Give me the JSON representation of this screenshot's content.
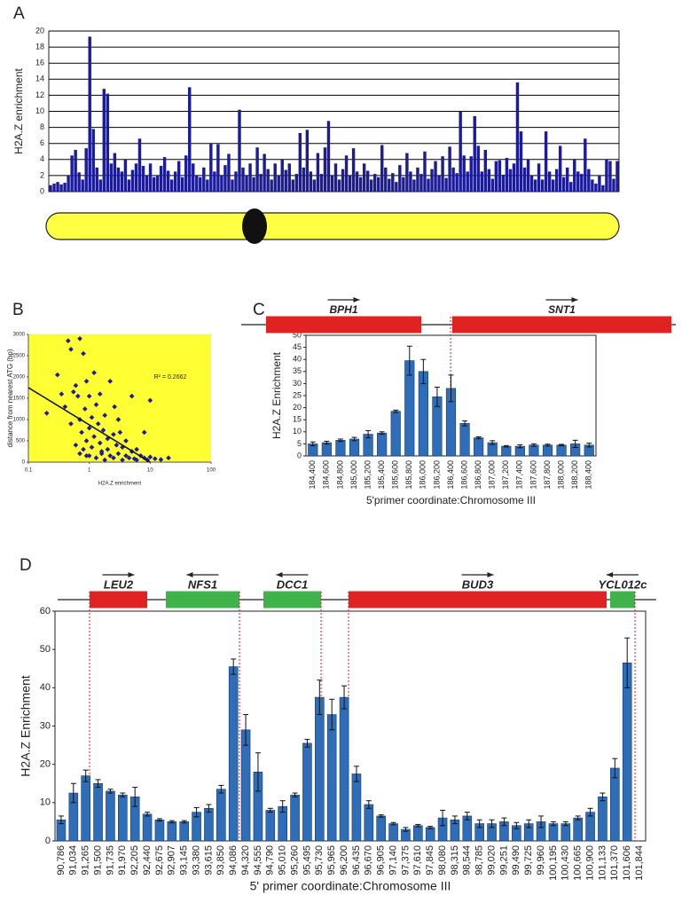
{
  "chart_data": [
    {
      "panel": "A",
      "type": "bar",
      "y_label": "H2A.Z enrichment",
      "color": "#1c1c96",
      "ylim": [
        0,
        20
      ],
      "yticks": [
        0,
        2,
        4,
        6,
        8,
        10,
        12,
        14,
        16,
        18,
        20
      ],
      "grid": true,
      "values": [
        0.8,
        1,
        1.2,
        0.9,
        1.1,
        2,
        4.5,
        5.2,
        2.4,
        1.5,
        5.4,
        19.3,
        7.8,
        3,
        1.5,
        12.8,
        12.2,
        3.5,
        4.8,
        3,
        2.5,
        4,
        1.5,
        2.7,
        3.5,
        6.6,
        3.2,
        2,
        3.5,
        1.8,
        2,
        3.2,
        4.3,
        2.6,
        1.5,
        2.5,
        3.8,
        1.8,
        4.5,
        13,
        3.5,
        2,
        1.8,
        3,
        1.5,
        6,
        2.5,
        5.9,
        2,
        3.3,
        4.7,
        1.5,
        2.5,
        10.2,
        3,
        2,
        3.5,
        1.8,
        5.5,
        2.2,
        4.7,
        2.8,
        1.5,
        3.5,
        2,
        4,
        2.7,
        3.5,
        1.5,
        2.2,
        7.3,
        3,
        7.7,
        2.5,
        1.5,
        4.8,
        2.2,
        5.5,
        8.8,
        2,
        3.5,
        1.5,
        2.8,
        4.5,
        2,
        5.4,
        2.5,
        1.8,
        3.5,
        2.6,
        1.5,
        2.2,
        1.8,
        5.8,
        3,
        1.6,
        2.3,
        1.2,
        3.3,
        1.8,
        4.8,
        2.5,
        1.5,
        3,
        2.2,
        5,
        1.6,
        2.8,
        3.8,
        2,
        4.4,
        1.7,
        5.6,
        3,
        2.3,
        10,
        4.5,
        2.5,
        4.4,
        9.4,
        5.7,
        2.5,
        5.2,
        2.8,
        1.6,
        3.8,
        3.9,
        2.1,
        4.2,
        2.8,
        3.5,
        13.6,
        7.5,
        3,
        4,
        2,
        1.5,
        3.5,
        1.5,
        7.5,
        2.5,
        1.5,
        2.8,
        5.7,
        1.8,
        3,
        1.2,
        4,
        2.5,
        2.2,
        6.6,
        2.8,
        1.5,
        1,
        2,
        0.8,
        4,
        3.8,
        1.6,
        3.8
      ]
    },
    {
      "panel": "B",
      "type": "scatter",
      "y_label": "distance from nearest ATG (bp)",
      "x_label": "H2A.Z enrichment",
      "annotation": "R² = 0.2662",
      "color": "#1c1c96",
      "background": "#ffff33",
      "xscale": "log",
      "xlim": [
        0.1,
        100
      ],
      "xticks": [
        0.1,
        1,
        10,
        100
      ],
      "ylim": [
        0,
        3000
      ],
      "yticks": [
        0,
        500,
        1000,
        1500,
        2000,
        2500,
        3000
      ],
      "x": [
        0.2,
        0.3,
        0.35,
        0.4,
        0.45,
        0.5,
        0.5,
        0.55,
        0.6,
        0.6,
        0.65,
        0.7,
        0.7,
        0.75,
        0.8,
        0.8,
        0.85,
        0.9,
        0.9,
        1,
        1,
        1,
        1.1,
        1.1,
        1.2,
        1.2,
        1.3,
        1.3,
        1.4,
        1.5,
        1.5,
        1.6,
        1.7,
        1.8,
        1.8,
        2,
        2,
        2.2,
        2.2,
        2.5,
        2.5,
        2.8,
        3,
        3,
        3.2,
        3.5,
        3.5,
        4,
        4,
        4.5,
        5,
        5,
        5.5,
        6,
        6,
        7,
        8,
        8,
        9,
        10,
        10,
        12,
        15,
        20,
        0.9,
        1.6,
        2.6,
        0.7
      ],
      "values": [
        1150,
        2050,
        1600,
        1300,
        2850,
        2650,
        900,
        1650,
        1800,
        400,
        1550,
        2900,
        1000,
        700,
        2550,
        300,
        1250,
        1900,
        500,
        1550,
        800,
        150,
        1050,
        350,
        2100,
        600,
        1350,
        100,
        900,
        450,
        1600,
        250,
        750,
        1100,
        50,
        550,
        300,
        1900,
        150,
        650,
        100,
        400,
        1000,
        200,
        700,
        50,
        350,
        500,
        150,
        100,
        250,
        1550,
        80,
        300,
        50,
        150,
        100,
        700,
        50,
        1450,
        120,
        80,
        60,
        100,
        150,
        200,
        1300,
        200
      ],
      "trendline": {
        "x": [
          0.1,
          10
        ],
        "values": [
          1750,
          0
        ]
      }
    },
    {
      "panel": "C",
      "type": "bar",
      "y_label": "H2A.Z Enrichment",
      "x_label": "5'primer coordinate:Chromosome III",
      "color": "#2f6db8",
      "ylim": [
        0,
        50
      ],
      "yticks": [
        0,
        5,
        10,
        15,
        20,
        25,
        30,
        35,
        40,
        45,
        50
      ],
      "grid": false,
      "genes": [
        {
          "name": "BPH1",
          "color": "#e02222"
        },
        {
          "name": "SNT1",
          "color": "#e02222"
        }
      ],
      "categories": [
        "184,400",
        "184,600",
        "184,800",
        "185,000",
        "185,200",
        "185,400",
        "185,600",
        "185,800",
        "186,000",
        "186,200",
        "186,400",
        "186,600",
        "186,800",
        "187,000",
        "187,200",
        "187,400",
        "187,600",
        "187,800",
        "188,000",
        "188,200",
        "188,400"
      ],
      "values": [
        5,
        5.5,
        6.5,
        7,
        9,
        9.5,
        18.5,
        39.5,
        35,
        24.5,
        28,
        13.5,
        7.5,
        5.5,
        4,
        4,
        4.5,
        4.5,
        4.5,
        5,
        4.5
      ],
      "errors": [
        0.8,
        0.6,
        0.5,
        0.7,
        1.5,
        0.5,
        0.5,
        6,
        5,
        4,
        5.5,
        1,
        0.4,
        0.8,
        0.3,
        0.6,
        0.5,
        0.4,
        0.3,
        1.5,
        0.8
      ]
    },
    {
      "panel": "D",
      "type": "bar",
      "y_label": "H2A.Z Enrichment",
      "x_label": "5' primer coordinate:Chromosome III",
      "color": "#2f6db8",
      "ylim": [
        0,
        60
      ],
      "yticks": [
        0,
        10,
        20,
        30,
        40,
        50,
        60
      ],
      "grid": false,
      "genes": [
        {
          "name": "LEU2",
          "color": "#e02222"
        },
        {
          "name": "NFS1",
          "color": "#3fb34a"
        },
        {
          "name": "DCC1",
          "color": "#3fb34a"
        },
        {
          "name": "BUD3",
          "color": "#e02222"
        },
        {
          "name": "YCL012c",
          "color": "#3fb34a"
        }
      ],
      "categories": [
        "90,786",
        "91,034",
        "91,265",
        "91,500",
        "91,735",
        "91,970",
        "92,205",
        "92,440",
        "92,675",
        "92,907",
        "93,145",
        "93,380",
        "93,615",
        "93,850",
        "94,086",
        "94,320",
        "94,555",
        "94,790",
        "95,010",
        "95,260",
        "95,495",
        "95,730",
        "95,965",
        "96,200",
        "96,435",
        "96,670",
        "96,905",
        "97,140",
        "97,375",
        "97,610",
        "97,845",
        "98,080",
        "98,315",
        "98,544",
        "98,785",
        "99,020",
        "99,251",
        "99,490",
        "99,725",
        "99,960",
        "100,195",
        "100,430",
        "100,665",
        "100,900",
        "101,133",
        "101,370",
        "101,606",
        "101,844"
      ],
      "values": [
        5.5,
        12.5,
        17,
        15,
        13,
        12,
        11.5,
        7,
        5.5,
        5,
        5,
        7.5,
        8.5,
        13.5,
        45.5,
        29,
        18,
        8,
        9,
        12,
        25.5,
        37.5,
        33,
        37.5,
        17.5,
        9.5,
        6.5,
        4.5,
        3,
        4,
        3.5,
        6,
        5.5,
        6.5,
        4.5,
        4.5,
        5,
        4,
        4.5,
        5,
        4.5,
        4.5,
        6,
        7.5,
        11.5,
        19,
        46.5,
        null
      ],
      "errors": [
        1,
        2.5,
        1.5,
        1,
        0.5,
        0.5,
        2.5,
        0.5,
        0.3,
        0.3,
        0.3,
        1.2,
        1,
        1,
        2,
        4,
        5,
        0.5,
        1.5,
        0.5,
        1,
        4.5,
        4,
        3,
        2,
        1,
        0.3,
        0.3,
        0.5,
        0.3,
        0.3,
        2,
        1,
        1,
        1,
        1,
        1,
        0.8,
        1,
        1.5,
        0.5,
        0.5,
        0.5,
        1,
        1,
        2.5,
        6.5,
        null
      ]
    }
  ]
}
